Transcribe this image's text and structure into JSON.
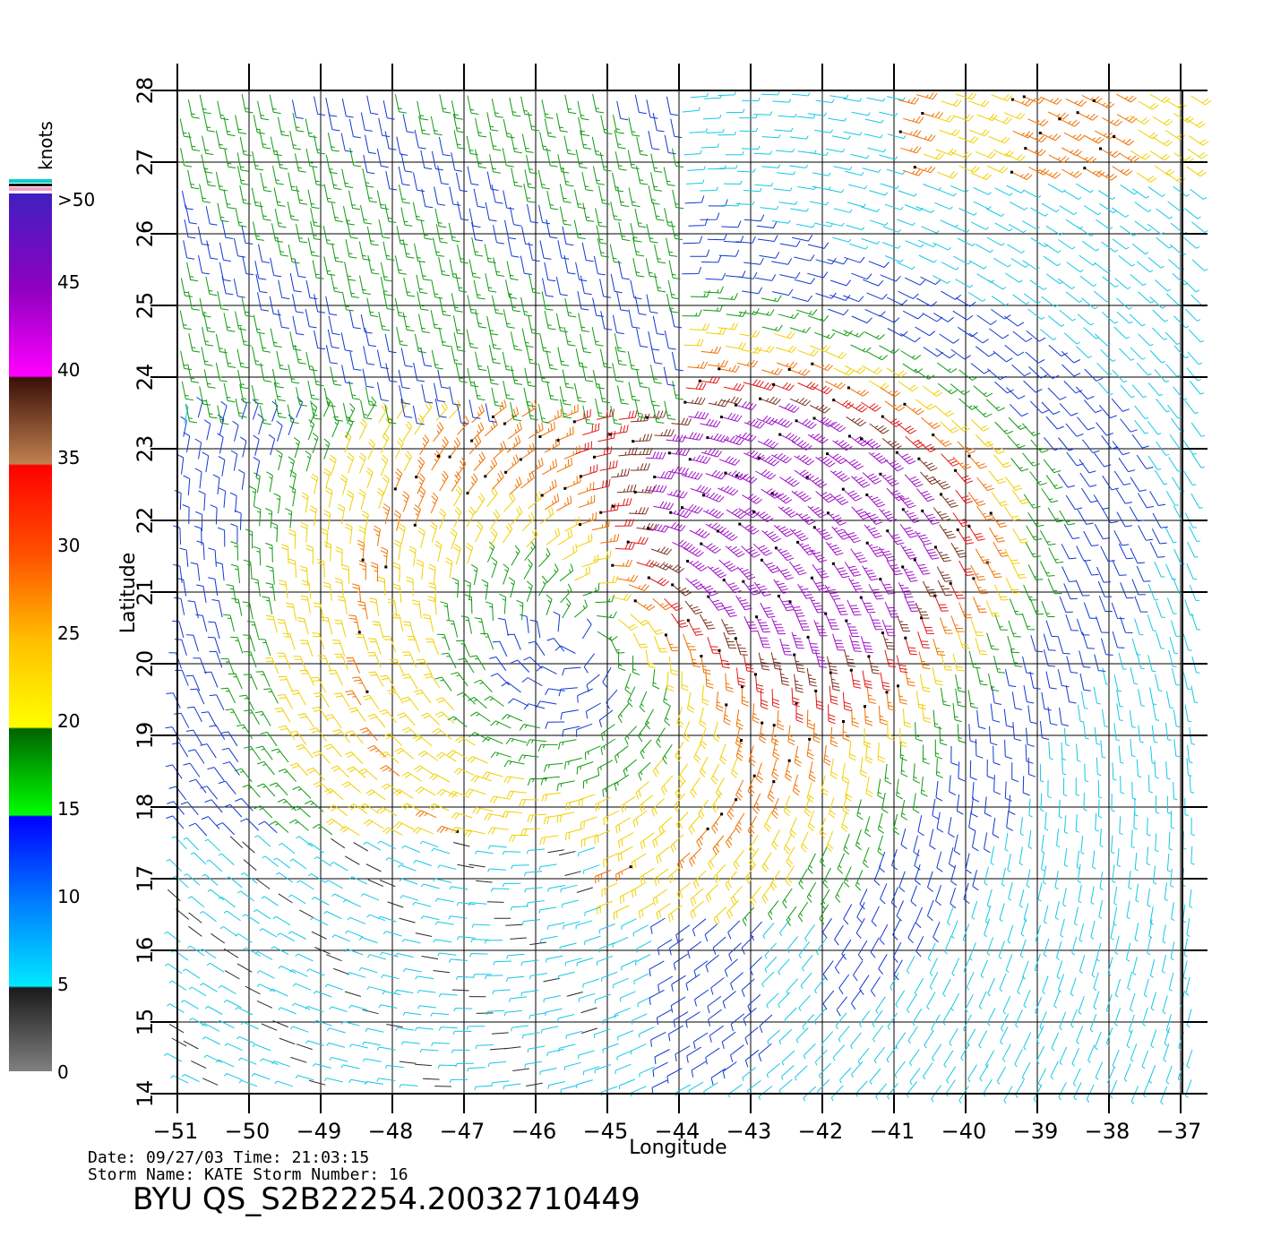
{
  "chart_data": {
    "type": "wind-barbs",
    "xlabel": "Longitude",
    "ylabel": "Latitude",
    "xlim": [
      -51,
      -36.6
    ],
    "ylim": [
      14,
      28
    ],
    "x_ticks": [
      -51,
      -50,
      -49,
      -48,
      -47,
      -46,
      -45,
      -44,
      -43,
      -42,
      -41,
      -40,
      -39,
      -38,
      -37
    ],
    "y_ticks": [
      14,
      15,
      16,
      17,
      18,
      19,
      20,
      21,
      22,
      23,
      24,
      25,
      26,
      27,
      28
    ],
    "grid": true,
    "storm_center": {
      "lon": -45.3,
      "lat": 20.3
    },
    "colorbar": {
      "unit": "knots",
      "labels": [
        "0",
        "5",
        "10",
        "15",
        "20",
        "25",
        "30",
        "35",
        "40",
        "45",
        ">50"
      ],
      "colors": {
        "0-5": "#808080",
        "5-15": "#00a0ff",
        "15-20": "#00b000",
        "20-25": "#ffd000",
        "25-30": "#ff6000",
        "30-35": "#ff1000",
        "35-40": "#a06040",
        "40-50": "#d000d0",
        ">50": "#6a10c0"
      }
    }
  },
  "meta": {
    "date_line": "Date: 09/27/03   Time: 21:03:15",
    "storm_line": "Storm Name: KATE   Storm Number: 16",
    "title": "BYU QS_S2B22254.20032710449"
  }
}
